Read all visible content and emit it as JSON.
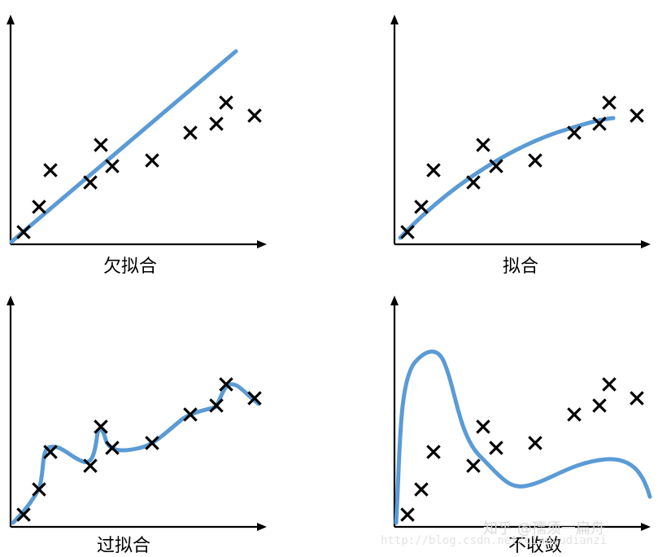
{
  "panels": [
    {
      "label": "欠拟合"
    },
    {
      "label": "拟合"
    },
    {
      "label": "过拟合"
    },
    {
      "label": "不收敛"
    }
  ],
  "watermark": {
    "zhihu": "知乎 @孺须一扁舟",
    "blog": "http://blog.csdn.net/qianyudianzi"
  }
}
